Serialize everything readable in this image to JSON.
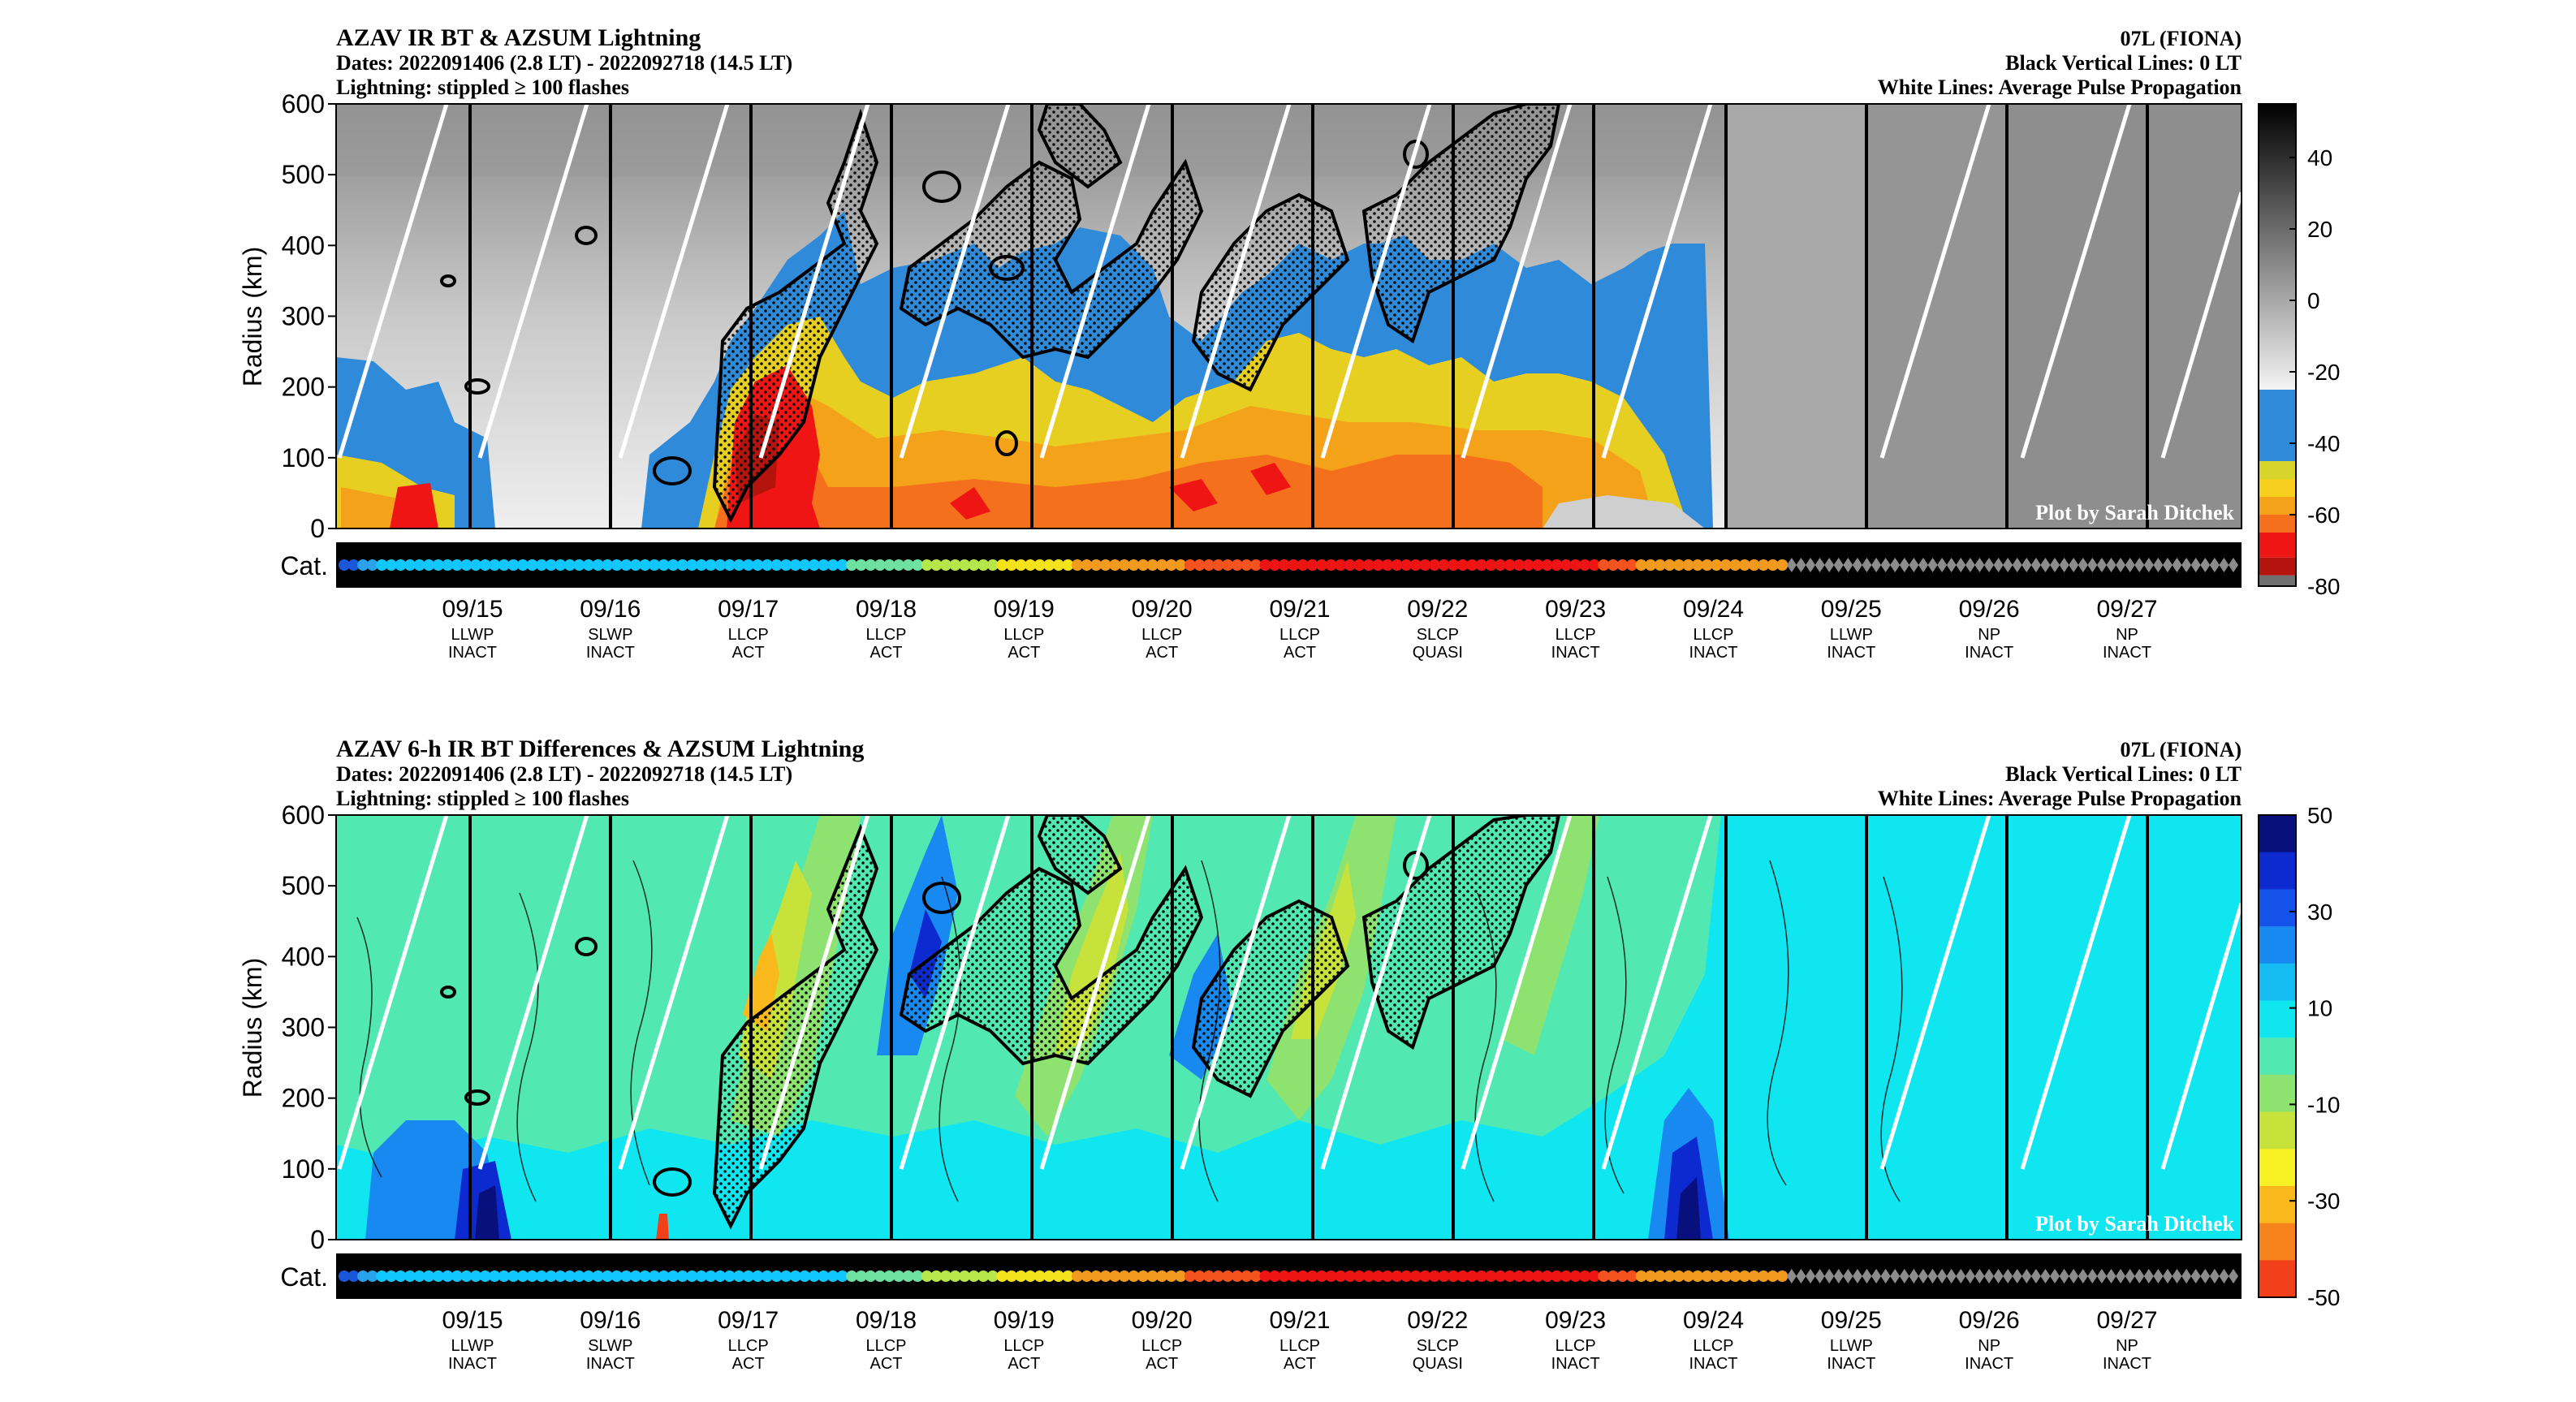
{
  "chart_data": [
    {
      "type": "heatmap",
      "title": "AZAV IR BT & AZSUM Lightning",
      "subtitle_lines": [
        "Dates: 2022091406 (2.8 LT) - 2022092718 (14.5 LT)",
        "Lightning: stippled ≥ 100 flashes"
      ],
      "right_title_lines": [
        "07L (FIONA)",
        "Black Vertical Lines: 0 LT",
        "White Lines: Average Pulse Propagation"
      ],
      "ylabel": "Radius (km)",
      "ylim": [
        0,
        600
      ],
      "y_ticks": [
        0,
        100,
        200,
        300,
        400,
        500,
        600
      ],
      "colorbar": {
        "ticks": [
          40,
          20,
          0,
          -20,
          -40,
          -60,
          -80
        ],
        "range": [
          -80,
          55
        ],
        "colors": [
          "#6f6f6f",
          "#b5140e",
          "#ef1515",
          "#f5701c",
          "#f4a21a",
          "#f7cf1e",
          "#d7d52c",
          "#2f8bd9"
        ]
      },
      "watermark": "Plot by Sarah Ditchek",
      "category_label": "Cat.",
      "category_markers": [
        "#1a56d8",
        "#1a56d8",
        "#2aa2ea",
        "#2aa2ea",
        "#10c8ff",
        "#10c8ff",
        "#10c8ff",
        "#10c8ff",
        "#10c8ff",
        "#10c8ff",
        "#10c8ff",
        "#10c8ff",
        "#10c8ff",
        "#10c8ff",
        "#10c8ff",
        "#10c8ff",
        "#10c8ff",
        "#10c8ff",
        "#10c8ff",
        "#10c8ff",
        "#10c8ff",
        "#10c8ff",
        "#10c8ff",
        "#10c8ff",
        "#10c8ff",
        "#10c8ff",
        "#10c8ff",
        "#10c8ff",
        "#10c8ff",
        "#10c8ff",
        "#10c8ff",
        "#10c8ff",
        "#10c8ff",
        "#10c8ff",
        "#10c8ff",
        "#10c8ff",
        "#10c8ff",
        "#10c8ff",
        "#10c8ff",
        "#10c8ff",
        "#10c8ff",
        "#10c8ff",
        "#10c8ff",
        "#10c8ff",
        "#10c8ff",
        "#10c8ff",
        "#10c8ff",
        "#10c8ff",
        "#10c8ff",
        "#10c8ff",
        "#10c8ff",
        "#10c8ff",
        "#10c8ff",
        "#10c8ff",
        "#6ee0a0",
        "#6ee0a0",
        "#6ee0a0",
        "#6ee0a0",
        "#6ee0a0",
        "#6ee0a0",
        "#6ee0a0",
        "#6ee0a0",
        "#b6e74a",
        "#b6e74a",
        "#b6e74a",
        "#b6e74a",
        "#b6e74a",
        "#b6e74a",
        "#b6e74a",
        "#b6e74a",
        "#f4e21b",
        "#f4e21b",
        "#f4e21b",
        "#f4e21b",
        "#f4e21b",
        "#f4e21b",
        "#f4e21b",
        "#f4e21b",
        "#f29a1e",
        "#f29a1e",
        "#f29a1e",
        "#f29a1e",
        "#f29a1e",
        "#f29a1e",
        "#f29a1e",
        "#f29a1e",
        "#f29a1e",
        "#f29a1e",
        "#f29a1e",
        "#f29a1e",
        "#f4521f",
        "#f4521f",
        "#f4521f",
        "#f4521f",
        "#f4521f",
        "#f4521f",
        "#f4521f",
        "#f4521f",
        "#ee1414",
        "#ee1414",
        "#ee1414",
        "#ee1414",
        "#ee1414",
        "#ee1414",
        "#ee1414",
        "#ee1414",
        "#ee1414",
        "#ee1414",
        "#ee1414",
        "#ee1414",
        "#ee1414",
        "#ee1414",
        "#ee1414",
        "#ee1414",
        "#ee1414",
        "#ee1414",
        "#ee1414",
        "#ee1414",
        "#ee1414",
        "#ee1414",
        "#ee1414",
        "#ee1414",
        "#ee1414",
        "#ee1414",
        "#ee1414",
        "#ee1414",
        "#ee1414",
        "#ee1414",
        "#ee1414",
        "#ee1414",
        "#ee1414",
        "#ee1414",
        "#ee1414",
        "#ee1414",
        "#f4521f",
        "#f4521f",
        "#f4521f",
        "#f4521f",
        "#f29a1e",
        "#f29a1e",
        "#f29a1e",
        "#f29a1e",
        "#f29a1e",
        "#f29a1e",
        "#f29a1e",
        "#f29a1e",
        "#f29a1e",
        "#f29a1e",
        "#f29a1e",
        "#f29a1e",
        "#f29a1e",
        "#f29a1e",
        "#f29a1e",
        "#f29a1e"
      ],
      "category_diamond_color": "#8c8c8c",
      "category_diamond_count": 48,
      "x_ticks": [
        {
          "date": "09/15",
          "line1": "LLWP",
          "line2": "INACT"
        },
        {
          "date": "09/16",
          "line1": "SLWP",
          "line2": "INACT"
        },
        {
          "date": "09/17",
          "line1": "LLCP",
          "line2": "ACT"
        },
        {
          "date": "09/18",
          "line1": "LLCP",
          "line2": "ACT"
        },
        {
          "date": "09/19",
          "line1": "LLCP",
          "line2": "ACT"
        },
        {
          "date": "09/20",
          "line1": "LLCP",
          "line2": "ACT"
        },
        {
          "date": "09/21",
          "line1": "LLCP",
          "line2": "ACT"
        },
        {
          "date": "09/22",
          "line1": "SLCP",
          "line2": "QUASI"
        },
        {
          "date": "09/23",
          "line1": "LLCP",
          "line2": "INACT"
        },
        {
          "date": "09/24",
          "line1": "LLCP",
          "line2": "INACT"
        },
        {
          "date": "09/25",
          "line1": "LLWP",
          "line2": "INACT"
        },
        {
          "date": "09/26",
          "line1": "NP",
          "line2": "INACT"
        },
        {
          "date": "09/27",
          "line1": "NP",
          "line2": "INACT"
        }
      ]
    },
    {
      "type": "heatmap",
      "title": "AZAV 6-h IR BT Differences & AZSUM Lightning",
      "subtitle_lines": [
        "Dates: 2022091406 (2.8 LT) - 2022092718 (14.5 LT)",
        "Lightning: stippled ≥ 100 flashes"
      ],
      "right_title_lines": [
        "07L (FIONA)",
        "Black Vertical Lines: 0 LT",
        "White Lines: Average Pulse Propagation"
      ],
      "ylabel": "Radius (km)",
      "ylim": [
        0,
        600
      ],
      "y_ticks": [
        0,
        100,
        200,
        300,
        400,
        500,
        600
      ],
      "colorbar": {
        "ticks": [
          50,
          30,
          10,
          -10,
          -30,
          -50
        ],
        "range": [
          -50,
          50
        ],
        "colors": [
          "#08107e",
          "#0c2ad0",
          "#1452ea",
          "#1889f0",
          "#14bcf2",
          "#10e6f0",
          "#52e8b2",
          "#8ee370",
          "#c6e23b",
          "#f7f022",
          "#f9b81b",
          "#f7831d",
          "#f2411a"
        ]
      },
      "watermark": "Plot by Sarah Ditchek",
      "category_label": "Cat.",
      "x_ticks_same_as_top": true
    }
  ]
}
